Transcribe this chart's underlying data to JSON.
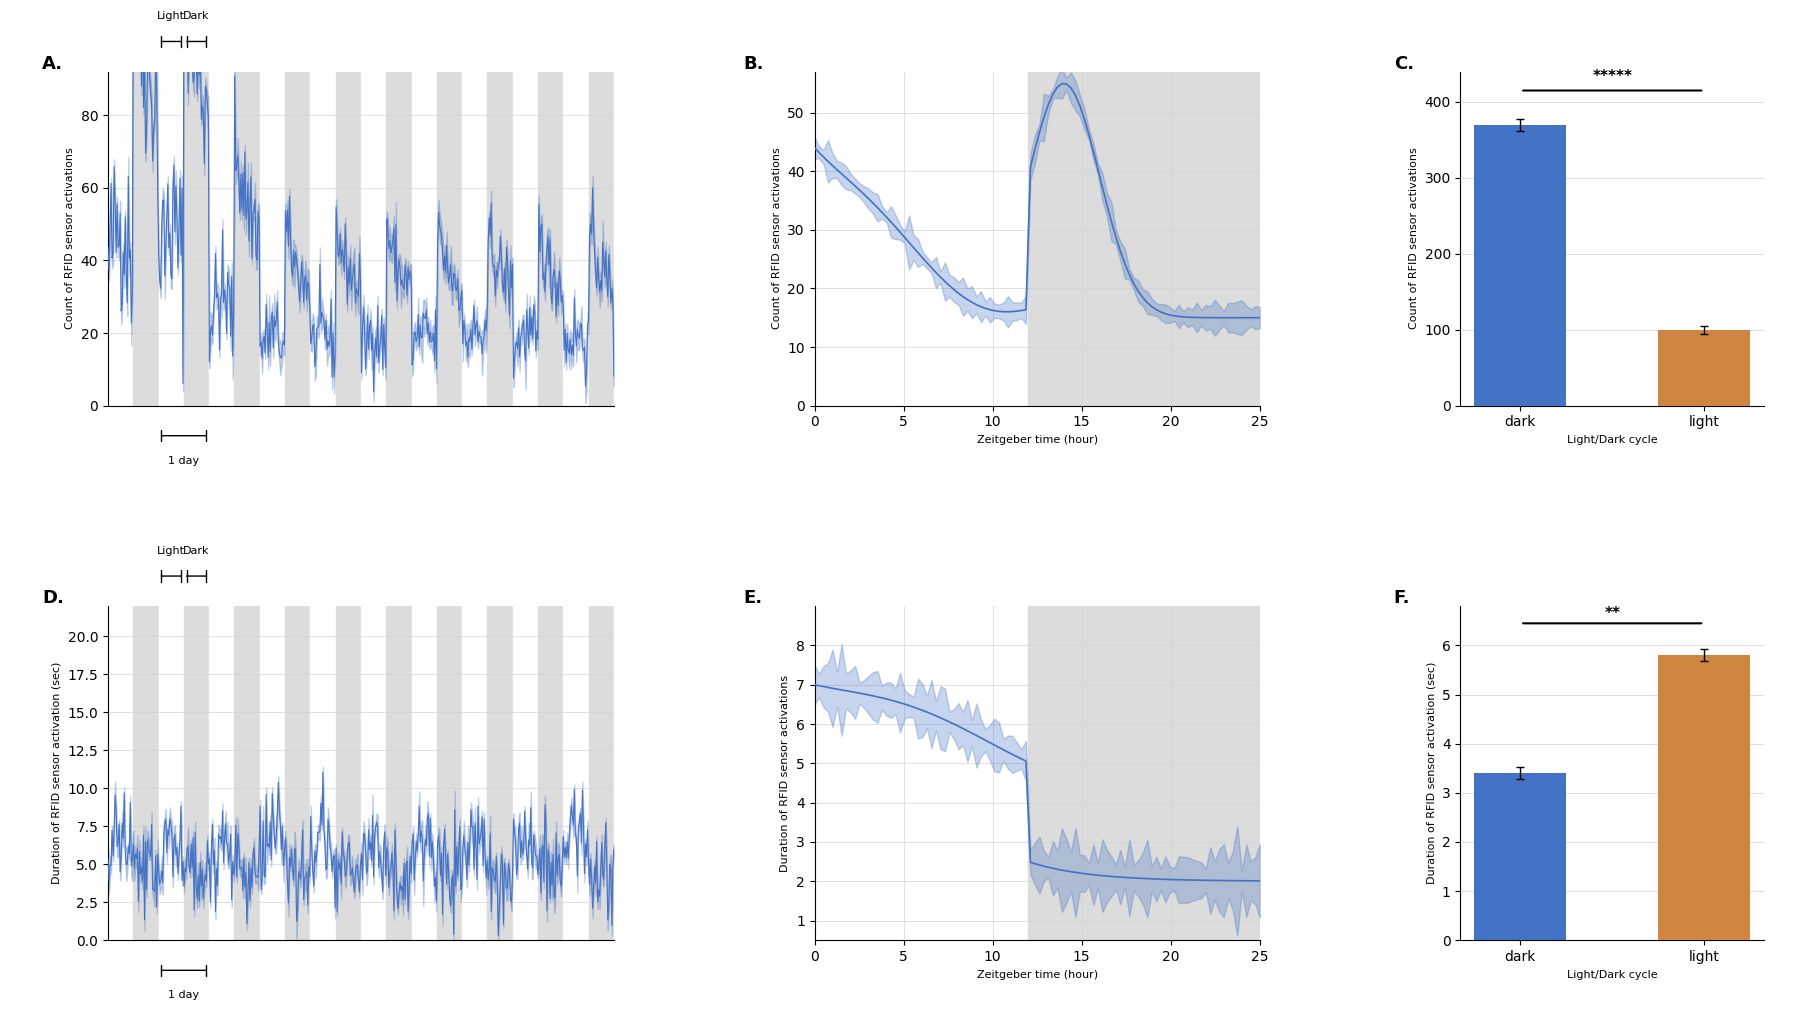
{
  "fig_width": 18.0,
  "fig_height": 10.22,
  "bg_color": "#ffffff",
  "line_color": "#4472C4",
  "dark_bar_color": "#4472C4",
  "light_bar_color": "#CD853F",
  "gray_bg": "#DCDCDC",
  "panel_A": {
    "ylabel": "Count of RFID sensor activations",
    "yticks": [
      0,
      20,
      40,
      60,
      80
    ],
    "ylim": [
      0,
      92
    ]
  },
  "panel_B": {
    "ylabel": "Count of RFID sensor activations",
    "xlabel": "Zeitgeber time (hour)",
    "yticks": [
      0,
      10,
      20,
      30,
      40,
      50
    ],
    "ylim": [
      0,
      57
    ],
    "xlim": [
      0,
      25
    ],
    "xticks": [
      0,
      5,
      10,
      15,
      20,
      25
    ]
  },
  "panel_C": {
    "ylabel": "Count of RFID sensor activations",
    "xlabel": "Light/Dark cycle",
    "dark_val": 370,
    "dark_err": 8,
    "light_val": 100,
    "light_err": 5,
    "yticks": [
      0,
      100,
      200,
      300,
      400
    ],
    "ylim": [
      0,
      440
    ],
    "sig_text": "*****"
  },
  "panel_D": {
    "ylabel": "Duration of RFID sensor activation (sec)",
    "yticks": [
      0.0,
      2.5,
      5.0,
      7.5,
      10.0,
      12.5,
      15.0,
      17.5,
      20.0
    ],
    "ylim": [
      0,
      22
    ]
  },
  "panel_E": {
    "ylabel": "Duration of RFID sensor activations",
    "xlabel": "Zeitgeber time (hour)",
    "yticks": [
      1,
      2,
      3,
      4,
      5,
      6,
      7,
      8
    ],
    "ylim": [
      0.5,
      9
    ],
    "xlim": [
      0,
      25
    ],
    "xticks": [
      0,
      5,
      10,
      15,
      20,
      25
    ]
  },
  "panel_F": {
    "ylabel": "Duration of RFID sensor activation (sec)",
    "xlabel": "Light/Dark cycle",
    "dark_val": 3.4,
    "dark_err": 0.12,
    "light_val": 5.8,
    "light_err": 0.12,
    "yticks": [
      0,
      1,
      2,
      3,
      4,
      5,
      6
    ],
    "ylim": [
      0,
      6.8
    ],
    "sig_text": "**"
  }
}
